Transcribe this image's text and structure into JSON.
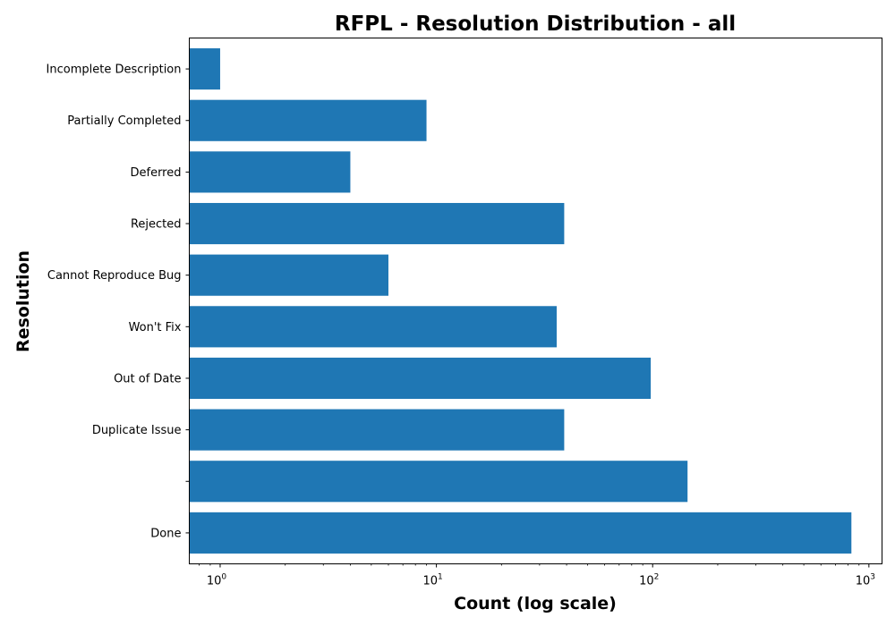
{
  "chart_data": {
    "type": "bar",
    "orientation": "horizontal",
    "title": "RFPL - Resolution Distribution - all",
    "xlabel": "Count (log scale)",
    "ylabel": "Resolution",
    "x_scale": "log",
    "xlim": [
      0.72,
      1150
    ],
    "x_ticks": [
      {
        "value": 1,
        "base": "10",
        "exp": "0"
      },
      {
        "value": 10,
        "base": "10",
        "exp": "1"
      },
      {
        "value": 100,
        "base": "10",
        "exp": "2"
      },
      {
        "value": 1000,
        "base": "10",
        "exp": "3"
      }
    ],
    "categories": [
      "Done",
      "",
      "Duplicate Issue",
      "Out of Date",
      "Won't Fix",
      "Cannot Reproduce Bug",
      "Rejected",
      "Deferred",
      "Partially Completed",
      "Incomplete Description"
    ],
    "values": [
      830,
      145,
      39,
      98,
      36,
      6,
      39,
      4,
      9,
      1
    ],
    "bar_color": "#1f77b4",
    "grid": false,
    "legend": "none"
  }
}
